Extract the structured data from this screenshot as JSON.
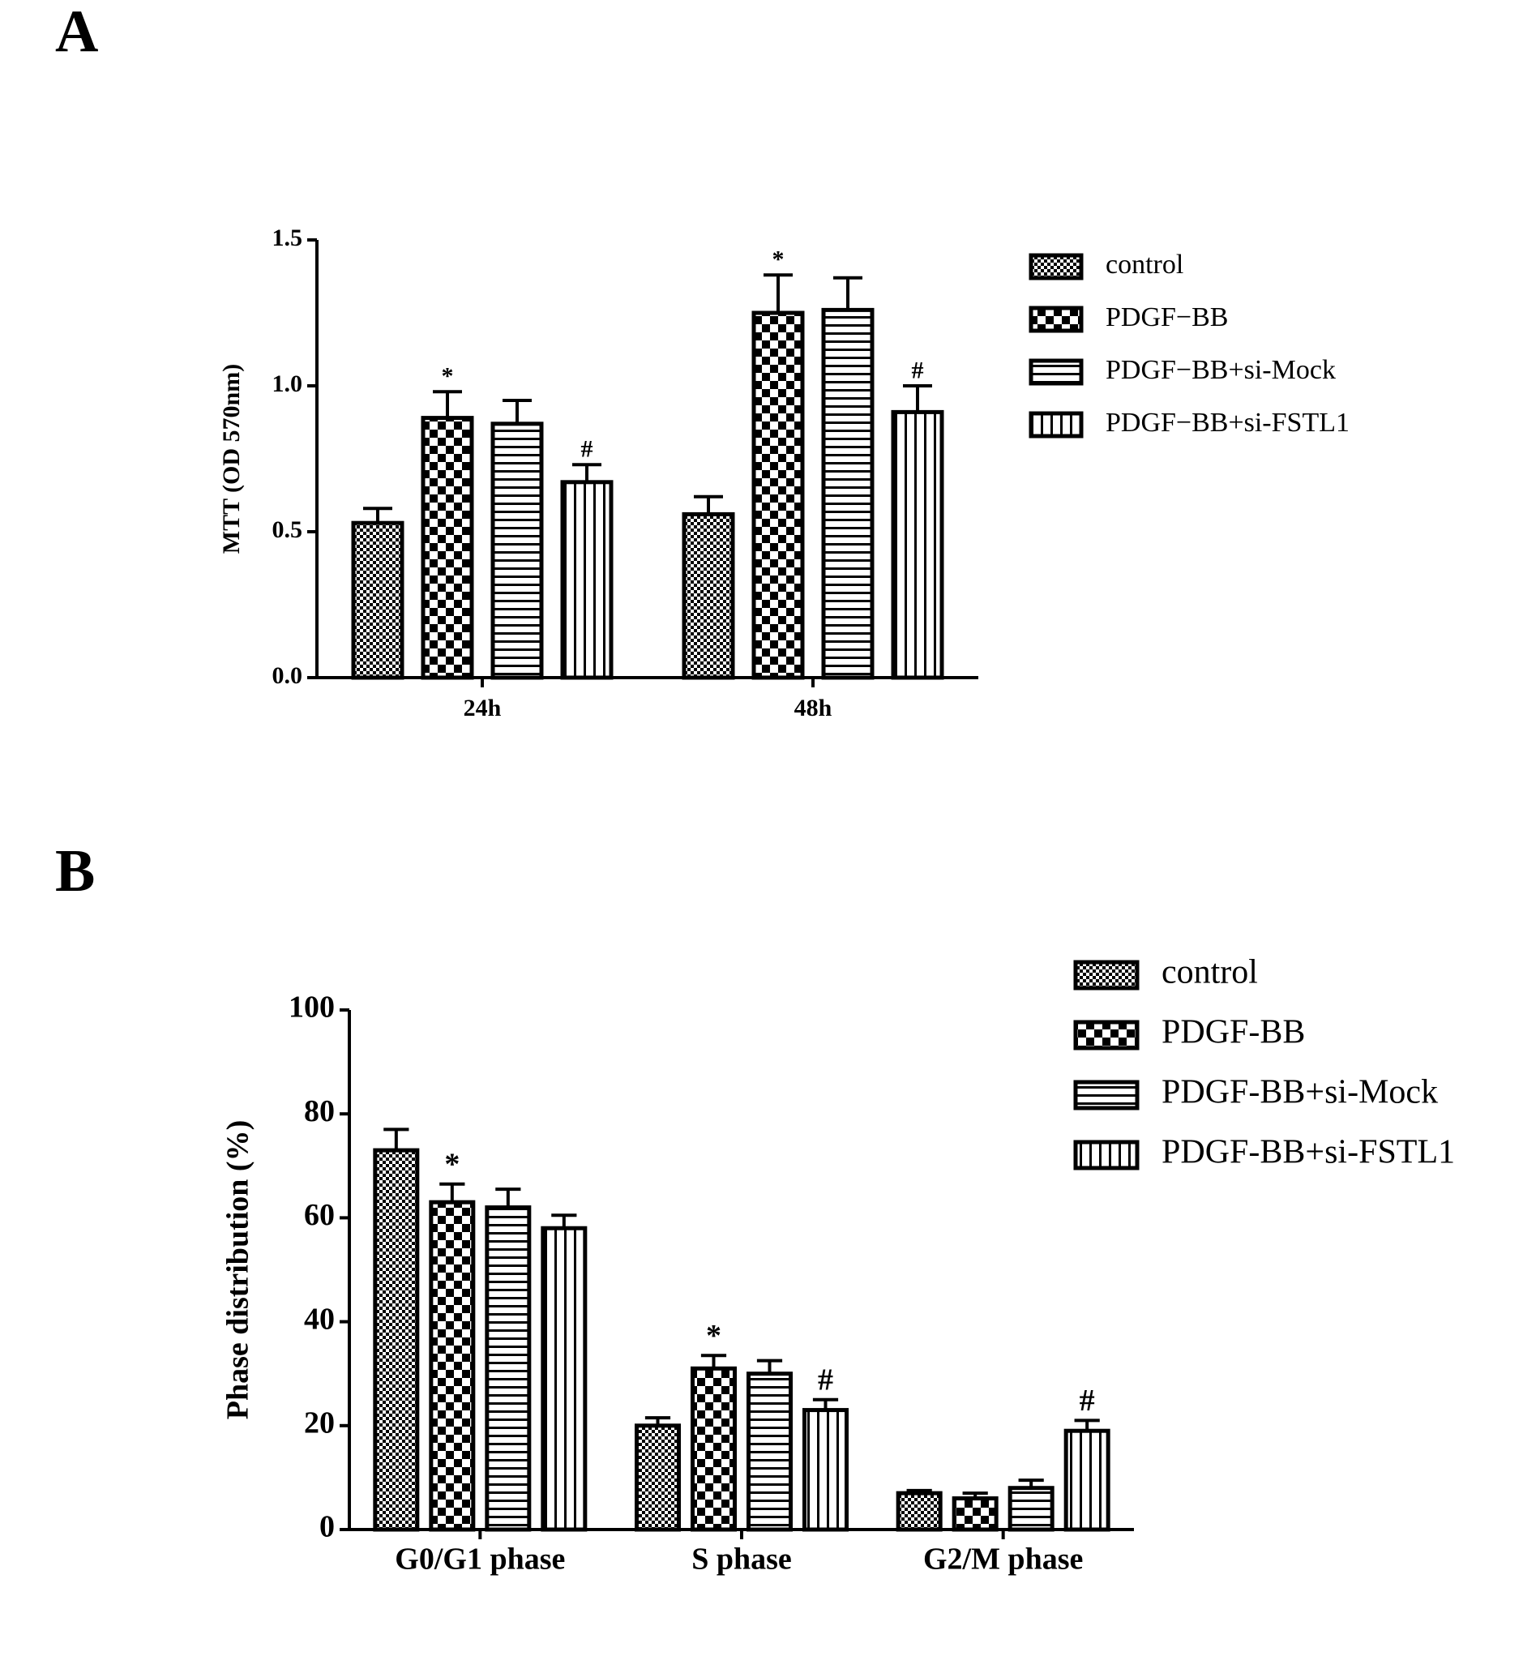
{
  "chart_data": [
    {
      "type": "bar",
      "panel": "A",
      "y_label": "MTT (OD 570nm)",
      "categories": [
        "24h",
        "48h"
      ],
      "ylim": [
        0,
        1.5
      ],
      "yticks": [
        {
          "value": 0,
          "label": "0.0"
        },
        0.5,
        {
          "value": 1,
          "label": "1.0"
        },
        1.5
      ],
      "series": [
        {
          "name": "control",
          "color": "#000000",
          "pattern": "fine-checker",
          "values": [
            0.53,
            0.56
          ],
          "errors": [
            0.05,
            0.06
          ]
        },
        {
          "name": "PDGF−BB",
          "color": "#000000",
          "pattern": "checker",
          "values": [
            0.89,
            1.25
          ],
          "errors": [
            0.09,
            0.13
          ],
          "annotations": [
            "*",
            "*"
          ]
        },
        {
          "name": "PDGF−BB+si-Mock",
          "color": "#000000",
          "pattern": "horizontal-stripes",
          "values": [
            0.87,
            1.26
          ],
          "errors": [
            0.08,
            0.11
          ]
        },
        {
          "name": "PDGF−BB+si-FSTL1",
          "color": "#000000",
          "pattern": "vertical-stripes",
          "values": [
            0.67,
            0.91
          ],
          "errors": [
            0.06,
            0.09
          ],
          "annotations": [
            "#",
            "#"
          ]
        }
      ],
      "legend": "right"
    },
    {
      "type": "bar",
      "panel": "B",
      "y_label": "Phase distribution (%)",
      "categories": [
        "G0/G1 phase",
        "S phase",
        "G2/M phase"
      ],
      "ylim": [
        0,
        100
      ],
      "yticks": [
        0,
        20,
        40,
        60,
        80,
        100
      ],
      "series": [
        {
          "name": "control",
          "color": "#000000",
          "pattern": "fine-checker",
          "values": [
            73,
            20,
            7
          ],
          "errors": [
            4,
            1.5,
            0.5
          ]
        },
        {
          "name": "PDGF-BB",
          "color": "#000000",
          "pattern": "checker",
          "values": [
            63,
            31,
            6
          ],
          "errors": [
            3.5,
            2.5,
            1
          ],
          "annotations": [
            "*",
            "*",
            null
          ]
        },
        {
          "name": "PDGF-BB+si-Mock",
          "color": "#000000",
          "pattern": "horizontal-stripes",
          "values": [
            62,
            30,
            8
          ],
          "errors": [
            3.5,
            2.5,
            1.5
          ]
        },
        {
          "name": "PDGF-BB+si-FSTL1",
          "color": "#000000",
          "pattern": "vertical-stripes",
          "values": [
            58,
            23,
            19
          ],
          "errors": [
            2.5,
            2,
            2
          ],
          "annotations": [
            null,
            "#",
            "#"
          ]
        }
      ],
      "legend": "right"
    }
  ]
}
